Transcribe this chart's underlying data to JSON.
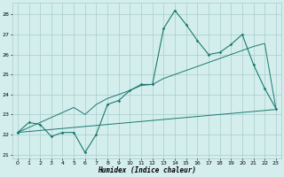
{
  "x_values": [
    0,
    1,
    2,
    3,
    4,
    5,
    6,
    7,
    8,
    9,
    10,
    11,
    12,
    13,
    14,
    15,
    16,
    17,
    18,
    19,
    20,
    21,
    22,
    23
  ],
  "line1_y": [
    22.1,
    22.6,
    22.5,
    21.9,
    22.1,
    22.1,
    21.1,
    22.0,
    23.5,
    23.7,
    24.2,
    24.5,
    24.5,
    27.3,
    28.2,
    27.5,
    26.7,
    26.0,
    26.1,
    26.5,
    27.0,
    25.5,
    24.3,
    23.3
  ],
  "line2_y": [
    22.1,
    22.15,
    22.2,
    22.25,
    22.3,
    22.35,
    22.4,
    22.45,
    22.5,
    22.55,
    22.6,
    22.65,
    22.7,
    22.75,
    22.8,
    22.85,
    22.9,
    22.95,
    23.0,
    23.05,
    23.1,
    23.15,
    23.2,
    23.25
  ],
  "line3_y": [
    22.1,
    22.35,
    22.6,
    22.85,
    23.1,
    23.35,
    23.0,
    23.5,
    23.8,
    24.0,
    24.2,
    24.45,
    24.5,
    24.8,
    25.0,
    25.2,
    25.4,
    25.6,
    25.8,
    26.0,
    26.2,
    26.4,
    26.55,
    23.3
  ],
  "line_color": "#1a7a6e",
  "bg_color": "#d4eeee",
  "grid_color": "#a8cccc",
  "xlabel": "Humidex (Indice chaleur)",
  "ylim": [
    20.8,
    28.6
  ],
  "xlim": [
    -0.5,
    23.5
  ],
  "yticks": [
    21,
    22,
    23,
    24,
    25,
    26,
    27,
    28
  ],
  "xticks": [
    0,
    1,
    2,
    3,
    4,
    5,
    6,
    7,
    8,
    9,
    10,
    11,
    12,
    13,
    14,
    15,
    16,
    17,
    18,
    19,
    20,
    21,
    22,
    23
  ]
}
